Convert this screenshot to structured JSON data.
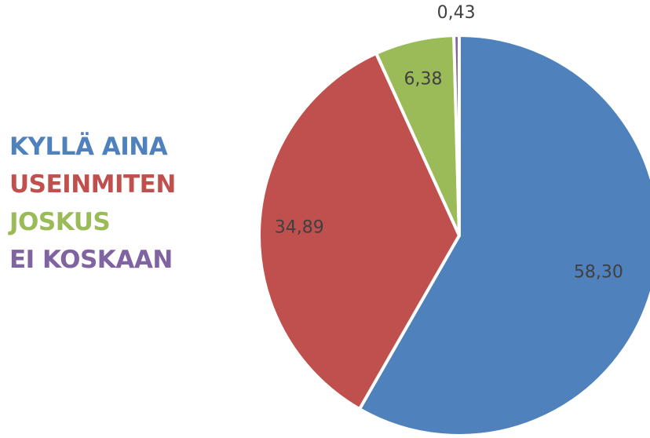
{
  "chart_data": {
    "type": "pie",
    "categories": [
      "KYLLÄ AINA",
      "USEINMITEN",
      "JOSKUS",
      "EI KOSKAAN"
    ],
    "values": [
      58.3,
      34.89,
      6.38,
      0.43
    ],
    "data_labels": [
      "58,30",
      "34,89",
      "6,38",
      "0,43"
    ],
    "colors": [
      "#4F81BD",
      "#C0504D",
      "#9BBB59",
      "#8064A2"
    ],
    "start_angle_deg": 0,
    "direction": "clockwise",
    "legend_placement": "left",
    "title": ""
  }
}
